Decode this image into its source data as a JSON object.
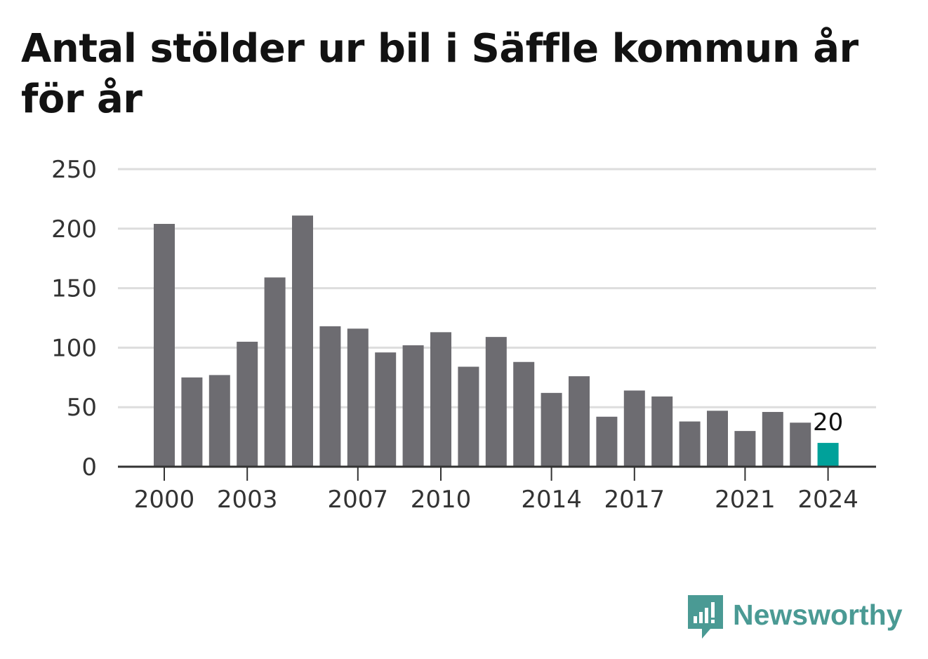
{
  "title": "Antal stölder ur bil i Säffle kommun år för år",
  "brand": {
    "name": "Newsworthy",
    "color": "#4a9a94",
    "icon": "newsworthy-logo-icon"
  },
  "colors": {
    "bar": "#6d6c71",
    "highlight": "#00a19a",
    "grid": "#dddddd",
    "axis": "#333333",
    "text": "#333333"
  },
  "chart_data": {
    "type": "bar",
    "title": "Antal stölder ur bil i Säffle kommun år för år",
    "xlabel": "",
    "ylabel": "",
    "categories": [
      "2000",
      "2001",
      "2002",
      "2003",
      "2004",
      "2005",
      "2006",
      "2007",
      "2008",
      "2009",
      "2010",
      "2011",
      "2012",
      "2013",
      "2014",
      "2015",
      "2016",
      "2017",
      "2018",
      "2019",
      "2020",
      "2021",
      "2022",
      "2023",
      "2024"
    ],
    "values": [
      204,
      75,
      77,
      105,
      159,
      211,
      118,
      116,
      96,
      102,
      113,
      84,
      109,
      88,
      62,
      76,
      42,
      64,
      59,
      38,
      47,
      30,
      46,
      37,
      20
    ],
    "highlight_category": "2024",
    "highlight_label": "20",
    "x_tick_labels": [
      "2000",
      "2003",
      "2007",
      "2010",
      "2014",
      "2017",
      "2021",
      "2024"
    ],
    "y_ticks": [
      0,
      50,
      100,
      150,
      200,
      250
    ],
    "ylim": [
      0,
      250
    ],
    "grid": true,
    "legend": "none"
  }
}
